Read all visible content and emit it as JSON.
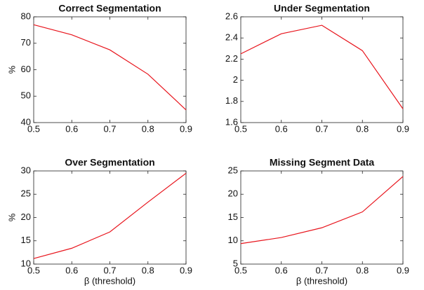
{
  "chart_data": [
    {
      "type": "line",
      "title": "Correct Segmentation",
      "ylabel": "%",
      "x": [
        0.5,
        0.6,
        0.7,
        0.8,
        0.9
      ],
      "values": [
        77,
        73.2,
        67.5,
        58.3,
        44.8
      ],
      "color": "#e8141c",
      "xlim": [
        0.5,
        0.9
      ],
      "xticks": [
        0.5,
        0.6,
        0.7,
        0.8,
        0.9
      ],
      "ylim": [
        40,
        80
      ],
      "yticks": [
        40,
        50,
        60,
        70,
        80
      ]
    },
    {
      "type": "line",
      "title": "Under Segmentation",
      "x": [
        0.5,
        0.6,
        0.7,
        0.8,
        0.9
      ],
      "values": [
        2.25,
        2.44,
        2.52,
        2.28,
        1.73
      ],
      "color": "#e8141c",
      "xlim": [
        0.5,
        0.9
      ],
      "xticks": [
        0.5,
        0.6,
        0.7,
        0.8,
        0.9
      ],
      "ylim": [
        1.6,
        2.6
      ],
      "yticks": [
        1.6,
        1.8,
        2,
        2.2,
        2.4,
        2.6
      ]
    },
    {
      "type": "line",
      "title": "Over Segmentation",
      "ylabel": "%",
      "xlabel": "β (threshold)",
      "x": [
        0.5,
        0.6,
        0.7,
        0.8,
        0.9
      ],
      "values": [
        11.2,
        13.4,
        16.9,
        23.3,
        29.5
      ],
      "color": "#e8141c",
      "xlim": [
        0.5,
        0.9
      ],
      "xticks": [
        0.5,
        0.6,
        0.7,
        0.8,
        0.9
      ],
      "ylim": [
        10,
        30
      ],
      "yticks": [
        10,
        15,
        20,
        25,
        30
      ]
    },
    {
      "type": "line",
      "title": "Missing Segment Data",
      "xlabel": "β (threshold)",
      "x": [
        0.5,
        0.6,
        0.7,
        0.8,
        0.9
      ],
      "values": [
        9.4,
        10.7,
        12.8,
        16.2,
        23.8
      ],
      "color": "#e8141c",
      "xlim": [
        0.5,
        0.9
      ],
      "xticks": [
        0.5,
        0.6,
        0.7,
        0.8,
        0.9
      ],
      "ylim": [
        5,
        25
      ],
      "yticks": [
        5,
        10,
        15,
        20,
        25
      ]
    }
  ]
}
